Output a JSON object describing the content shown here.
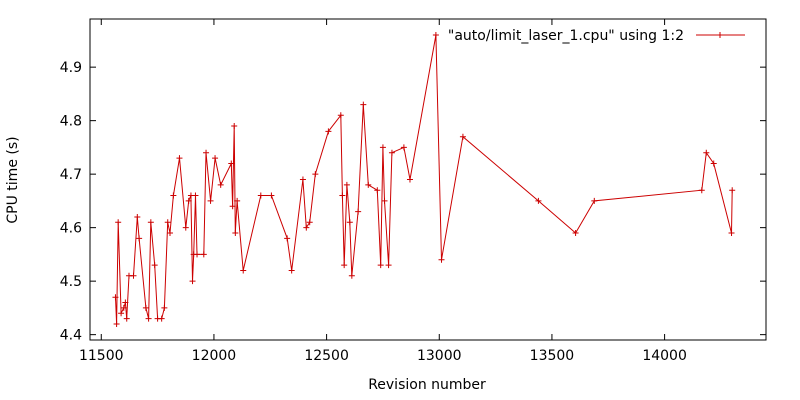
{
  "chart_data": {
    "type": "line",
    "xlabel": "Revision number",
    "ylabel": "CPU time (s)",
    "xlim": [
      11450,
      14450
    ],
    "ylim": [
      4.39,
      4.99
    ],
    "x_ticks": [
      11500,
      12000,
      12500,
      13000,
      13500,
      14000
    ],
    "y_ticks": [
      4.4,
      4.5,
      4.6,
      4.7,
      4.8,
      4.9
    ],
    "y_tick_labels": [
      "4.4",
      "4.5",
      "4.6",
      "4.7",
      "4.8",
      "4.9"
    ],
    "grid": false,
    "legend_position": "top-right",
    "marker": "plus",
    "series": [
      {
        "name": "\"auto/limit_laser_1.cpu\" using 1:2",
        "color": "#cc0000",
        "points": [
          [
            11563,
            4.47
          ],
          [
            11568,
            4.42
          ],
          [
            11575,
            4.61
          ],
          [
            11588,
            4.44
          ],
          [
            11600,
            4.45
          ],
          [
            11607,
            4.46
          ],
          [
            11613,
            4.43
          ],
          [
            11623,
            4.51
          ],
          [
            11643,
            4.51
          ],
          [
            11660,
            4.62
          ],
          [
            11668,
            4.58
          ],
          [
            11698,
            4.45
          ],
          [
            11710,
            4.43
          ],
          [
            11720,
            4.61
          ],
          [
            11737,
            4.53
          ],
          [
            11750,
            4.43
          ],
          [
            11768,
            4.43
          ],
          [
            11780,
            4.45
          ],
          [
            11795,
            4.61
          ],
          [
            11805,
            4.59
          ],
          [
            11820,
            4.66
          ],
          [
            11847,
            4.73
          ],
          [
            11875,
            4.6
          ],
          [
            11888,
            4.65
          ],
          [
            11898,
            4.66
          ],
          [
            11905,
            4.5
          ],
          [
            11910,
            4.55
          ],
          [
            11918,
            4.66
          ],
          [
            11925,
            4.55
          ],
          [
            11955,
            4.55
          ],
          [
            11965,
            4.74
          ],
          [
            11985,
            4.65
          ],
          [
            12005,
            4.73
          ],
          [
            12030,
            4.68
          ],
          [
            12077,
            4.72
          ],
          [
            12083,
            4.64
          ],
          [
            12090,
            4.79
          ],
          [
            12095,
            4.59
          ],
          [
            12103,
            4.65
          ],
          [
            12130,
            4.52
          ],
          [
            12208,
            4.66
          ],
          [
            12255,
            4.66
          ],
          [
            12325,
            4.58
          ],
          [
            12345,
            4.52
          ],
          [
            12395,
            4.69
          ],
          [
            12410,
            4.6
          ],
          [
            12425,
            4.61
          ],
          [
            12450,
            4.7
          ],
          [
            12508,
            4.78
          ],
          [
            12563,
            4.81
          ],
          [
            12570,
            4.66
          ],
          [
            12578,
            4.53
          ],
          [
            12590,
            4.68
          ],
          [
            12603,
            4.61
          ],
          [
            12612,
            4.51
          ],
          [
            12640,
            4.63
          ],
          [
            12663,
            4.83
          ],
          [
            12685,
            4.68
          ],
          [
            12725,
            4.67
          ],
          [
            12740,
            4.53
          ],
          [
            12750,
            4.75
          ],
          [
            12757,
            4.65
          ],
          [
            12775,
            4.53
          ],
          [
            12790,
            4.74
          ],
          [
            12843,
            4.75
          ],
          [
            12870,
            4.69
          ],
          [
            12985,
            4.96
          ],
          [
            13010,
            4.54
          ],
          [
            13105,
            4.77
          ],
          [
            13440,
            4.65
          ],
          [
            13605,
            4.59
          ],
          [
            13688,
            4.65
          ],
          [
            14165,
            4.67
          ],
          [
            14185,
            4.74
          ],
          [
            14218,
            4.72
          ],
          [
            14297,
            4.59
          ],
          [
            14300,
            4.67
          ]
        ]
      }
    ]
  }
}
